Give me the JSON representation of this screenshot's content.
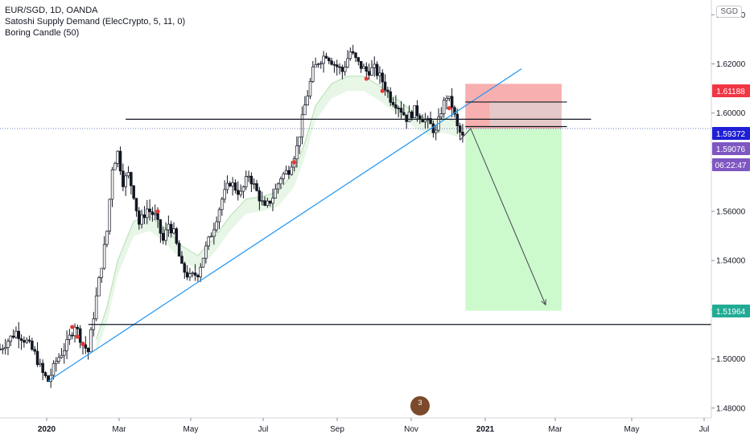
{
  "legend": {
    "symbol": "EUR/SGD, 1D, OANDA",
    "indicator1": "Satoshi Supply Demand (ElecCrypto, 5, 11, 0)",
    "indicator2": "Boring Candle (50)"
  },
  "currency_button": "SGD",
  "logo_badge": "3",
  "chart_data": {
    "type": "candlestick",
    "title": "EUR/SGD, 1D, OANDA",
    "x_ticks": [
      "2020",
      "Mar",
      "May",
      "Jul",
      "Sep",
      "Nov",
      "2021",
      "Mar",
      "May",
      "Jul"
    ],
    "y_ticks": [
      "1.64000",
      "1.62000",
      "1.60000",
      "1.58000",
      "1.56000",
      "1.54000",
      "1.52000",
      "1.50000",
      "1.48000"
    ],
    "ylim": [
      1.476,
      1.646
    ],
    "price_labels": [
      {
        "value": "1.61188",
        "color": "#f23645"
      },
      {
        "value": "1.59372",
        "color": "#1f1fd6"
      },
      {
        "value": "1.59076",
        "color": "#7e57c2"
      },
      {
        "value": "06:22:47",
        "color": "#7e57c2"
      },
      {
        "value": "1.51964",
        "color": "#22ab94"
      }
    ],
    "colors": {
      "up": "#ffffff",
      "down": "#131722",
      "ma": "#b2dfb0",
      "support": "#2196f3",
      "stop_zone": "#f7a1a1",
      "target_zone": "#c8fac8",
      "dotted": "#3f51b5"
    },
    "price_path": [
      [
        0,
        1.504
      ],
      [
        6,
        1.511
      ],
      [
        10,
        1.507
      ],
      [
        13,
        1.502
      ],
      [
        16,
        1.494
      ],
      [
        18,
        1.491
      ],
      [
        21,
        1.499
      ],
      [
        25,
        1.506
      ],
      [
        28,
        1.514
      ],
      [
        31,
        1.506
      ],
      [
        33,
        1.503
      ],
      [
        36,
        1.525
      ],
      [
        40,
        1.552
      ],
      [
        42,
        1.578
      ],
      [
        44,
        1.584
      ],
      [
        46,
        1.572
      ],
      [
        48,
        1.575
      ],
      [
        50,
        1.567
      ],
      [
        52,
        1.555
      ],
      [
        55,
        1.561
      ],
      [
        58,
        1.558
      ],
      [
        61,
        1.548
      ],
      [
        63,
        1.555
      ],
      [
        65,
        1.551
      ],
      [
        68,
        1.537
      ],
      [
        71,
        1.533
      ],
      [
        74,
        1.535
      ],
      [
        77,
        1.545
      ],
      [
        80,
        1.554
      ],
      [
        83,
        1.565
      ],
      [
        86,
        1.572
      ],
      [
        90,
        1.567
      ],
      [
        93,
        1.575
      ],
      [
        96,
        1.568
      ],
      [
        99,
        1.561
      ],
      [
        102,
        1.566
      ],
      [
        105,
        1.574
      ],
      [
        108,
        1.577
      ],
      [
        111,
        1.586
      ],
      [
        114,
        1.603
      ],
      [
        117,
        1.617
      ],
      [
        119,
        1.621
      ],
      [
        122,
        1.624
      ],
      [
        125,
        1.62
      ],
      [
        128,
        1.617
      ],
      [
        131,
        1.625
      ],
      [
        134,
        1.62
      ],
      [
        137,
        1.617
      ],
      [
        140,
        1.618
      ],
      [
        143,
        1.613
      ],
      [
        146,
        1.606
      ],
      [
        149,
        1.603
      ],
      [
        152,
        1.598
      ],
      [
        155,
        1.601
      ],
      [
        158,
        1.598
      ],
      [
        161,
        1.595
      ],
      [
        163,
        1.592
      ],
      [
        165,
        1.601
      ],
      [
        167,
        1.607
      ],
      [
        169,
        1.603
      ],
      [
        171,
        1.594
      ],
      [
        173,
        1.59
      ]
    ],
    "ma_path": [
      [
        36,
        1.508
      ],
      [
        40,
        1.521
      ],
      [
        44,
        1.54
      ],
      [
        50,
        1.556
      ],
      [
        56,
        1.558
      ],
      [
        62,
        1.553
      ],
      [
        68,
        1.546
      ],
      [
        74,
        1.542
      ],
      [
        80,
        1.549
      ],
      [
        86,
        1.558
      ],
      [
        92,
        1.565
      ],
      [
        98,
        1.566
      ],
      [
        104,
        1.568
      ],
      [
        110,
        1.576
      ],
      [
        114,
        1.588
      ],
      [
        118,
        1.603
      ],
      [
        124,
        1.612
      ],
      [
        130,
        1.615
      ],
      [
        136,
        1.615
      ],
      [
        142,
        1.611
      ],
      [
        148,
        1.606
      ],
      [
        154,
        1.601
      ],
      [
        160,
        1.597
      ],
      [
        166,
        1.598
      ],
      [
        172,
        1.596
      ]
    ],
    "red_dots": [
      [
        27,
        1.513
      ],
      [
        29,
        1.509
      ],
      [
        31,
        1.506
      ],
      [
        59,
        1.56
      ],
      [
        110,
        1.58
      ],
      [
        137,
        1.614
      ],
      [
        143,
        1.609
      ],
      [
        168,
        1.602
      ]
    ],
    "support_line": [
      [
        18,
        1.491
      ],
      [
        195,
        1.618
      ]
    ],
    "horizontal_lines": [
      {
        "y": 1.5975,
        "x_start": 47,
        "x_end": 221
      },
      {
        "y": 1.6045,
        "x_start": 174,
        "x_end": 212
      },
      {
        "y": 1.5945,
        "x_start": 174,
        "x_end": 212
      },
      {
        "y": 1.514,
        "x_start": 33,
        "x_end": 300
      }
    ],
    "position": {
      "x_start": 174,
      "x_end": 210,
      "entry": 1.5937,
      "stop": 1.6119,
      "target": 1.5196
    },
    "projection": [
      [
        172,
        1.589
      ],
      [
        176,
        1.5937
      ],
      [
        204,
        1.522
      ]
    ],
    "current_price": 1.59076
  }
}
